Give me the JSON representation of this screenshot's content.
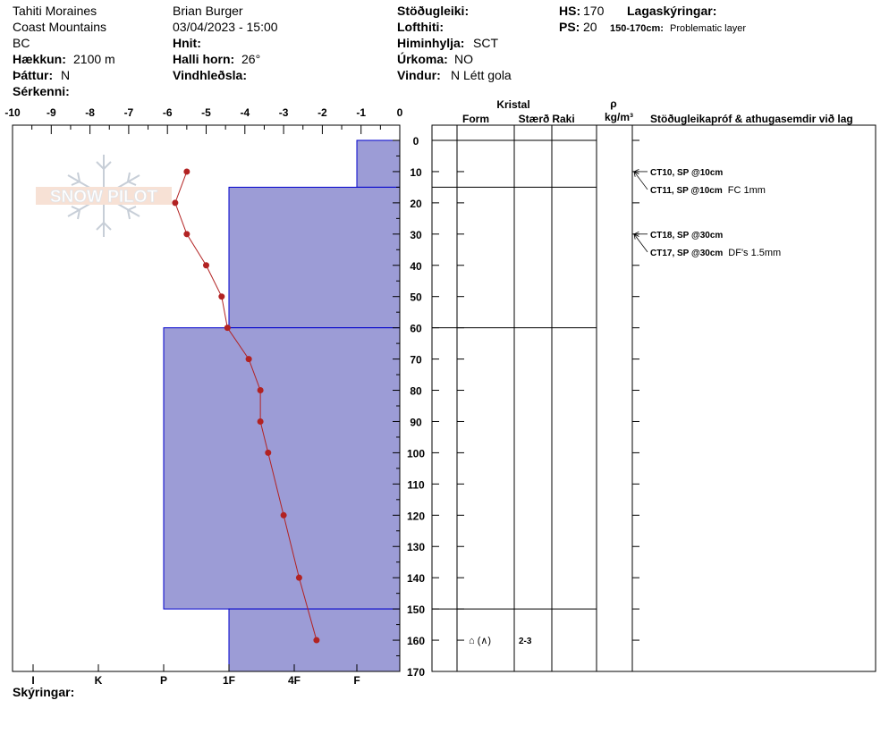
{
  "header": {
    "col1": {
      "location": "Tahiti Moraines",
      "range": "Coast Mountains",
      "state": "BC",
      "elevation": {
        "label": "Hækkun:",
        "value": "2100 m"
      },
      "aspect": {
        "label": "Þáttur:",
        "value": "N"
      },
      "specifics": {
        "label": "Sérkenni:",
        "value": ""
      }
    },
    "col2": {
      "observer": "Brian Burger",
      "datetime": "03/04/2023 - 15:00",
      "coords": {
        "label": "Hnit:",
        "value": ""
      },
      "slope": {
        "label": "Halli horn:",
        "value": "26°"
      },
      "wind_loading": {
        "label": "Vindhleðsla:",
        "value": ""
      }
    },
    "col3": {
      "stability": {
        "label": "Stöðugleiki:",
        "value": ""
      },
      "air_temp": {
        "label": "Lofthiti:",
        "value": ""
      },
      "sky": {
        "label": "Himinhylja:",
        "value": "SCT"
      },
      "precip": {
        "label": "Úrkoma:",
        "value": "NO"
      },
      "wind": {
        "label": "Vindur:",
        "value": "N Létt gola"
      }
    },
    "col4": {
      "hs": {
        "label": "HS:",
        "value": "170"
      },
      "ps": {
        "label": "PS:",
        "value": "20"
      }
    },
    "legend": {
      "title": "Lagaskýringar:",
      "entry_range": "150-170cm:",
      "entry_text": "Problematic layer"
    }
  },
  "logo_text": "SNOW PILOT",
  "footer": {
    "label": "Skýringar:"
  },
  "table_headers": {
    "crystal": "Kristal",
    "form": "Form",
    "size": "Stærð",
    "moisture": "Raki",
    "rho": "ρ",
    "density_unit": "kg/m³",
    "comments": "Stöðugleikapróf & athugasemdir við lag"
  },
  "chart_data": {
    "type": "snow_profile",
    "temperature_axis": {
      "range": [
        -10,
        0
      ],
      "tick_labels": [
        "-10",
        "-9",
        "-8",
        "-7",
        "-6",
        "-5",
        "-4",
        "-3",
        "-2",
        "-1",
        "0"
      ]
    },
    "depth_axis": {
      "range": [
        0,
        170
      ],
      "tick_labels": [
        "0",
        "10",
        "20",
        "30",
        "40",
        "50",
        "60",
        "70",
        "80",
        "90",
        "100",
        "110",
        "120",
        "130",
        "140",
        "150",
        "160",
        "170"
      ]
    },
    "hardness_axis": {
      "labels": [
        "I",
        "K",
        "P",
        "1F",
        "4F",
        "F"
      ]
    },
    "hardness_layers": [
      {
        "top": 0,
        "bottom": 15,
        "hardness": "F"
      },
      {
        "top": 15,
        "bottom": 60,
        "hardness": "1F"
      },
      {
        "top": 60,
        "bottom": 150,
        "hardness": "P"
      },
      {
        "top": 150,
        "bottom": 170,
        "hardness": "1F"
      }
    ],
    "temperature_profile": [
      {
        "depth": 10,
        "temp": -5.5
      },
      {
        "depth": 20,
        "temp": -5.8
      },
      {
        "depth": 30,
        "temp": -5.5
      },
      {
        "depth": 40,
        "temp": -5.0
      },
      {
        "depth": 50,
        "temp": -4.6
      },
      {
        "depth": 60,
        "temp": -4.45
      },
      {
        "depth": 70,
        "temp": -3.9
      },
      {
        "depth": 80,
        "temp": -3.6
      },
      {
        "depth": 90,
        "temp": -3.6
      },
      {
        "depth": 100,
        "temp": -3.4
      },
      {
        "depth": 120,
        "temp": -3.0
      },
      {
        "depth": 140,
        "temp": -2.6
      },
      {
        "depth": 160,
        "temp": -2.15
      }
    ],
    "layer_boundaries": [
      0,
      15,
      60,
      150,
      170
    ],
    "crystal_layers": [
      {
        "top": 150,
        "bottom": 170,
        "form": "⌂ (∧)",
        "size": "2-3",
        "moisture": ""
      }
    ],
    "tests": [
      {
        "depth": 10,
        "label": "CT10, SP @10cm",
        "note": ""
      },
      {
        "depth": 10,
        "label": "CT11, SP @10cm",
        "note": "FC 1mm"
      },
      {
        "depth": 30,
        "label": "CT18, SP @30cm",
        "note": ""
      },
      {
        "depth": 30,
        "label": "CT17, SP @30cm",
        "note": "DF's 1.5mm"
      }
    ],
    "colors": {
      "layer_fill": "#9c9cd6",
      "layer_stroke": "#0000cc",
      "temp_line": "#b22222"
    }
  }
}
